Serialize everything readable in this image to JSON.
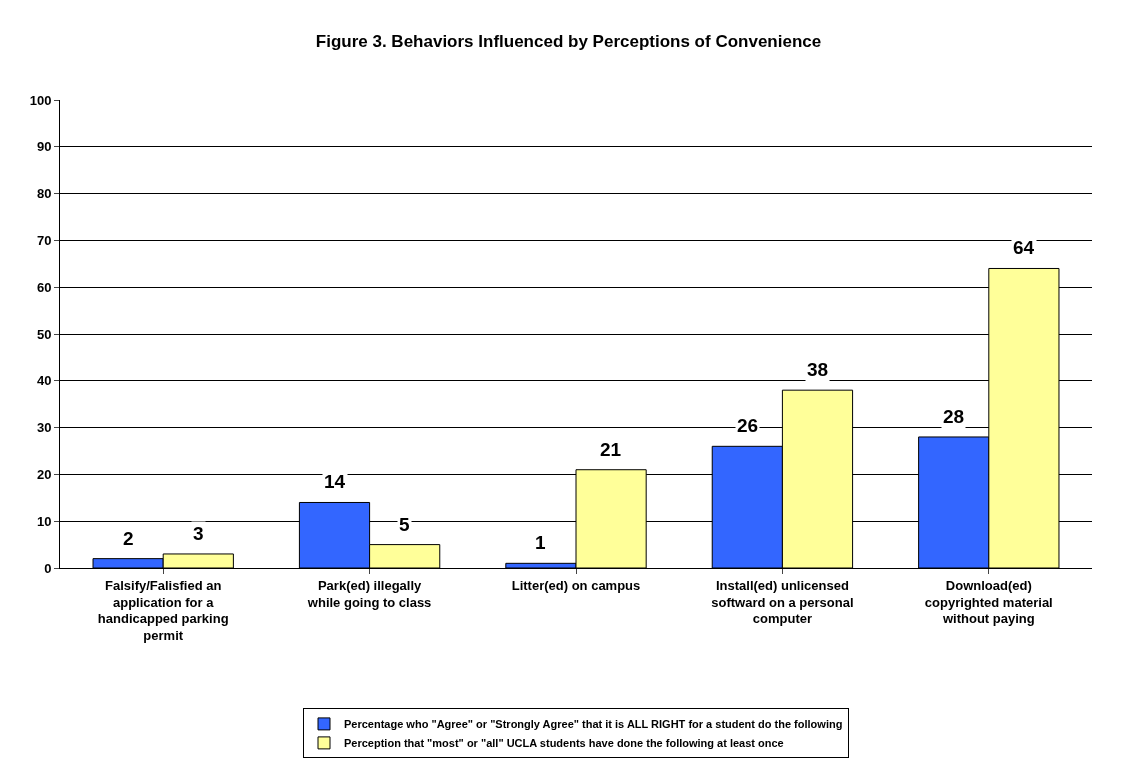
{
  "chart_data": {
    "type": "bar",
    "title": "Figure 3. Behaviors Influenced by Perceptions of Convenience",
    "categories": [
      "Falsify/Falisfied an application for a handicapped parking permit",
      "Park(ed) illegally while going to class",
      "Litter(ed) on campus",
      "Install(ed) unlicensed softward on a personal computer",
      "Download(ed) copyrighted material without paying"
    ],
    "series": [
      {
        "name": "Percentage who \"Agree\" or \"Strongly Agree\" that it is ALL RIGHT for a student do the following",
        "color": "#3366ff",
        "values": [
          2,
          14,
          1,
          26,
          28
        ]
      },
      {
        "name": "Perception that \"most\" or \"all\" UCLA students have done the following at least once",
        "color": "#ffff99",
        "values": [
          3,
          5,
          21,
          38,
          64
        ]
      }
    ],
    "ylim": [
      0,
      100
    ],
    "yticks": [
      0,
      10,
      20,
      30,
      40,
      50,
      60,
      70,
      80,
      90,
      100
    ],
    "grid": "y",
    "legend": "bottom",
    "data_labels": true
  }
}
